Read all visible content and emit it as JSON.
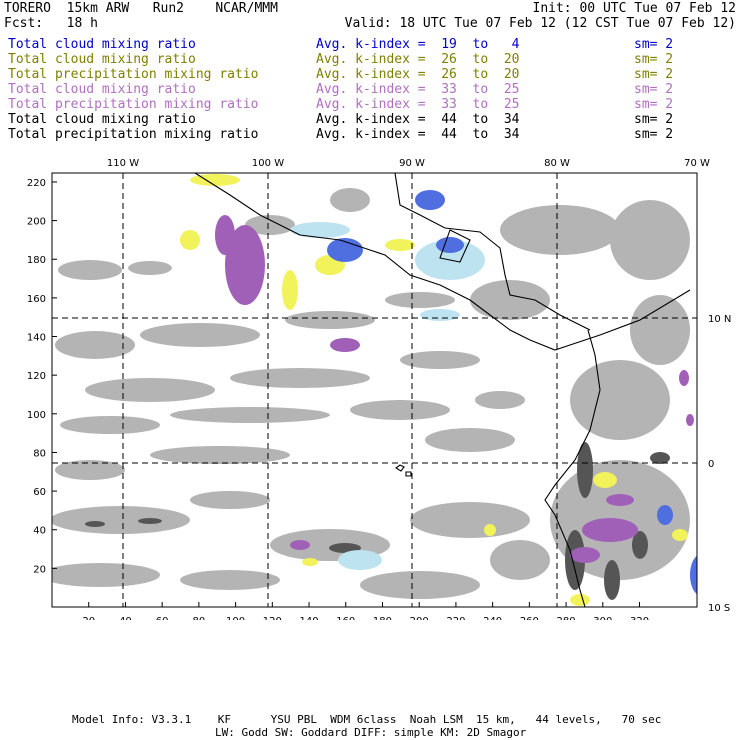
{
  "header": {
    "left_line1": "TORERO  15km ARW   Run2    NCAR/MMM",
    "right_line1": "Init: 00 UTC Tue 07 Feb 12",
    "left_line2": "Fcst:   18 h",
    "right_line2": "Valid: 18 UTC Tue 07 Feb 12 (12 CST Tue 07 Feb 12)"
  },
  "fields": [
    {
      "name": "Total cloud mixing ratio",
      "avg": "Avg. k-index =  19  to   4",
      "sm": "sm= 2",
      "color": "#0000cc"
    },
    {
      "name": "Total cloud mixing ratio",
      "avg": "Avg. k-index =  26  to  20",
      "sm": "sm= 2",
      "color": "#808000"
    },
    {
      "name": "Total precipitation mixing ratio",
      "avg": "Avg. k-index =  26  to  20",
      "sm": "sm= 2",
      "color": "#808000"
    },
    {
      "name": "Total cloud mixing ratio",
      "avg": "Avg. k-index =  33  to  25",
      "sm": "sm= 2",
      "color": "#b070c0"
    },
    {
      "name": "Total precipitation mixing ratio",
      "avg": "Avg. k-index =  33  to  25",
      "sm": "sm= 2",
      "color": "#b070c0"
    },
    {
      "name": "Total cloud mixing ratio",
      "avg": "Avg. k-index =  44  to  34",
      "sm": "sm= 2",
      "color": "#000000"
    },
    {
      "name": "Total precipitation mixing ratio",
      "avg": "Avg. k-index =  44  to  34",
      "sm": "sm= 2",
      "color": "#000000"
    }
  ],
  "map": {
    "lon_labels": [
      "110 W",
      "100 W",
      "90 W",
      "80 W",
      "70 W"
    ],
    "lat_labels": [
      "10 N",
      "0",
      "10 S"
    ],
    "y_ticks": [
      "220",
      "200",
      "180",
      "160",
      "140",
      "120",
      "100",
      "80",
      "60",
      "40",
      "20"
    ],
    "x_ticks": [
      "20",
      "40",
      "60",
      "80",
      "100",
      "120",
      "140",
      "160",
      "180",
      "200",
      "220",
      "240",
      "260",
      "280",
      "300",
      "320"
    ]
  },
  "footer": {
    "line1": "Model Info: V3.3.1    KF      YSU PBL  WDM 6class  Noah LSM  15 km,   44 levels,   70 sec",
    "line2": "LW: Godd SW: Goddard DIFF: simple KM: 2D Smagor"
  }
}
